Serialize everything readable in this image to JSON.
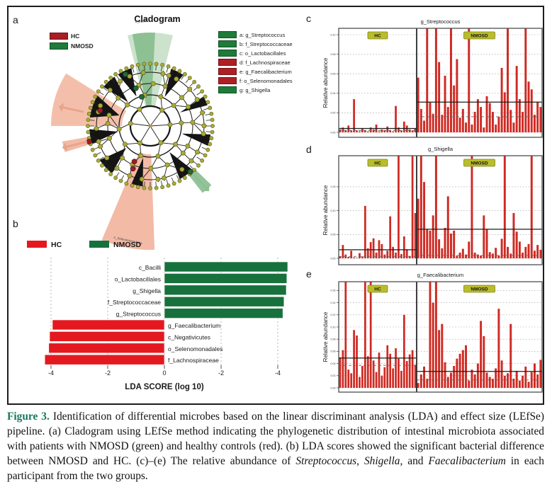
{
  "panels": {
    "a_label": "a",
    "b_label": "b",
    "c_label": "c",
    "d_label": "d",
    "e_label": "e"
  },
  "cladogram": {
    "title": "Cladogram",
    "group_legend": [
      {
        "label": "HC",
        "color": "#a81e24"
      },
      {
        "label": "NMOSD",
        "color": "#1e7b3a"
      }
    ],
    "taxa_legend": [
      {
        "key": "a",
        "label": "a: g_Streptococcus",
        "color": "#1e7b3a"
      },
      {
        "key": "b",
        "label": "b: f_Streptococcaceae",
        "color": "#1e7b3a"
      },
      {
        "key": "c",
        "label": "c: o_Lactobacillales",
        "color": "#1e7b3a"
      },
      {
        "key": "d",
        "label": "d: f_Lachnospiraceae",
        "color": "#b01f24"
      },
      {
        "key": "e",
        "label": "e: g_Faecalibacterium",
        "color": "#b01f24"
      },
      {
        "key": "f",
        "label": "f: o_Selenomonadales",
        "color": "#b01f24"
      },
      {
        "key": "g",
        "label": "g: g_Shigella",
        "color": "#1e7b3a"
      }
    ],
    "sector_labels": {
      "top": "c_Bacilli",
      "bottom": "o_Selenomonadales"
    },
    "colors": {
      "sector_green": "#8fbf8f",
      "sector_green_dark": "#4e9e5a",
      "sector_salmon": "#f0a98e",
      "node_olive": "#a9ab3a"
    }
  },
  "chart_data": [
    {
      "id": "lda_scores",
      "type": "bar",
      "title": "",
      "xlabel": "LDA SCORE (log 10)",
      "x_ticks": [
        "-4",
        "-2",
        "0",
        "-2",
        "-4"
      ],
      "legend": [
        {
          "label": "HC",
          "color": "#e4191f"
        },
        {
          "label": "NMOSD",
          "color": "#17713c"
        }
      ],
      "bars": [
        {
          "taxon": "c_Bacilli",
          "group": "NMOSD",
          "value": 4.35
        },
        {
          "taxon": "o_Lactobacillales",
          "group": "NMOSD",
          "value": 4.32
        },
        {
          "taxon": "g_Shigella",
          "group": "NMOSD",
          "value": 4.3
        },
        {
          "taxon": "f_Streptococcaceae",
          "group": "NMOSD",
          "value": 4.22
        },
        {
          "taxon": "g_Streptococcus",
          "group": "NMOSD",
          "value": 4.18
        },
        {
          "taxon": "g_Faecalibacterium",
          "group": "HC",
          "value": -3.95
        },
        {
          "taxon": "c_Negativicutes",
          "group": "HC",
          "value": -4.05
        },
        {
          "taxon": "o_Selenomonadales",
          "group": "HC",
          "value": -4.08
        },
        {
          "taxon": "f_Lachnospiraceae",
          "group": "HC",
          "value": -4.22
        }
      ]
    },
    {
      "id": "streptococcus_abundance",
      "type": "bar",
      "title": "g_Streptococcus",
      "ylabel": "Relative abundance",
      "group_labels": [
        "HC",
        "NMOSD"
      ],
      "bar_color": "#cf2a23",
      "y_ticks": [
        0.1,
        0.08,
        0.06,
        0.04,
        0.02,
        0.0
      ],
      "hc": {
        "mean": 0.004,
        "median": 0.002,
        "values": [
          0.003,
          0.005,
          0.002,
          0.007,
          0.002,
          0.034,
          0.002,
          0.001,
          0.004,
          0.002,
          0.001,
          0.005,
          0.003,
          0.008,
          0.001,
          0.003,
          0.002,
          0.006,
          0.002,
          0.001,
          0.027,
          0.005,
          0.002,
          0.011,
          0.007,
          0.003,
          0.002,
          0.004
        ]
      },
      "nmosd": {
        "mean": 0.031,
        "median": 0.016,
        "values": [
          0.056,
          0.024,
          0.012,
          0.12,
          0.031,
          0.019,
          0.12,
          0.072,
          0.018,
          0.058,
          0.026,
          0.12,
          0.048,
          0.075,
          0.015,
          0.024,
          0.01,
          0.12,
          0.008,
          0.021,
          0.034,
          0.026,
          0.005,
          0.037,
          0.03,
          0.021,
          0.008,
          0.016,
          0.066,
          0.041,
          0.12,
          0.023,
          0.01,
          0.068,
          0.034,
          0.021,
          0.12,
          0.052,
          0.044,
          0.018,
          0.031,
          0.026
        ]
      }
    },
    {
      "id": "shigella_abundance",
      "type": "bar",
      "title": "g_Shigella",
      "ylabel": "Relative abundance",
      "group_labels": [
        "HC",
        "NMOSD"
      ],
      "bar_color": "#cf2a23",
      "y_ticks": [
        0.15,
        0.1,
        0.05,
        0.0
      ],
      "hc": {
        "mean": 0.018,
        "median": 0.004,
        "values": [
          0.004,
          0.028,
          0.008,
          0.003,
          0.016,
          0.002,
          0.001,
          0.011,
          0.004,
          0.11,
          0.021,
          0.034,
          0.042,
          0.012,
          0.038,
          0.03,
          0.008,
          0.016,
          0.088,
          0.024,
          0.012,
          0.22,
          0.009,
          0.046,
          0.019,
          0.005,
          0.22,
          0.095
        ]
      },
      "nmosd": {
        "mean": 0.061,
        "median": 0.006,
        "values": [
          0.125,
          0.22,
          0.16,
          0.06,
          0.058,
          0.09,
          0.22,
          0.04,
          0.021,
          0.064,
          0.13,
          0.052,
          0.058,
          0.005,
          0.012,
          0.02,
          0.008,
          0.035,
          0.22,
          0.012,
          0.008,
          0.006,
          0.09,
          0.06,
          0.013,
          0.01,
          0.022,
          0.006,
          0.041,
          0.22,
          0.024,
          0.01,
          0.095,
          0.056,
          0.035,
          0.012,
          0.024,
          0.03,
          0.22,
          0.016,
          0.028,
          0.018
        ]
      }
    },
    {
      "id": "faecalibacterium_abundance",
      "type": "bar",
      "title": "g_Faecalibacterium",
      "ylabel": "Relative abundance",
      "group_labels": [
        "HC",
        "NMOSD"
      ],
      "bar_color": "#cf2a23",
      "y_ticks": [
        0.16,
        0.14,
        0.12,
        0.1,
        0.08,
        0.06,
        0.04,
        0.02,
        0.0
      ],
      "hc": {
        "mean": 0.049,
        "median": 0.037,
        "values": [
          0.05,
          0.062,
          0.19,
          0.03,
          0.024,
          0.095,
          0.086,
          0.018,
          0.036,
          0.19,
          0.052,
          0.19,
          0.045,
          0.026,
          0.058,
          0.02,
          0.034,
          0.07,
          0.056,
          0.032,
          0.065,
          0.048,
          0.028,
          0.12,
          0.044,
          0.055,
          0.062,
          0.038
        ]
      },
      "nmosd": {
        "mean": 0.027,
        "median": 0.013,
        "values": [
          0.008,
          0.022,
          0.035,
          0.015,
          0.19,
          0.14,
          0.19,
          0.095,
          0.105,
          0.042,
          0.018,
          0.025,
          0.036,
          0.048,
          0.056,
          0.062,
          0.07,
          0.012,
          0.03,
          0.022,
          0.04,
          0.11,
          0.085,
          0.025,
          0.018,
          0.015,
          0.032,
          0.13,
          0.045,
          0.02,
          0.024,
          0.105,
          0.015,
          0.028,
          0.012,
          0.02,
          0.035,
          0.01,
          0.026,
          0.04,
          0.022,
          0.046
        ]
      }
    }
  ],
  "caption": {
    "label": "Figure 3.",
    "label_color": "#16795f",
    "segments": [
      {
        "text": "  Identification of differential microbes based on the linear discriminant analysis (LDA) and effect size (LEfSe) pipeline. (a) Cladogram using LEfSe method indicating the phylogenetic distribution of intestinal microbiota associated with patients with NMOSD (green) and healthy controls (red). (b) LDA scores showed the significant bacterial difference between NMOSD and HC. (c)–(e) The relative abundance of ",
        "italic": false
      },
      {
        "text": "Streptococcus",
        "italic": true
      },
      {
        "text": ", ",
        "italic": false
      },
      {
        "text": "Shigella",
        "italic": true
      },
      {
        "text": ", and ",
        "italic": false
      },
      {
        "text": "Faecalibacterium",
        "italic": true
      },
      {
        "text": " in each participant from the two groups.",
        "italic": false
      }
    ]
  }
}
